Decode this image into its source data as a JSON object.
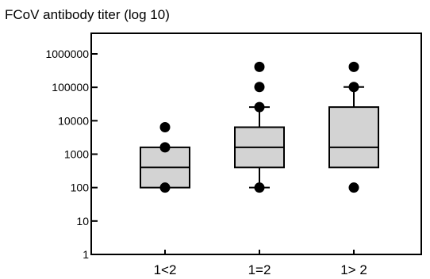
{
  "chart_data": {
    "type": "boxplot",
    "title": "",
    "ylabel": "FCoV antibody titer (log 10)",
    "xlabel": "",
    "yscale": "log",
    "ylim": [
      1,
      1000000
    ],
    "ytick_labels": [
      "1",
      "10",
      "100",
      "1000",
      "10000",
      "100000",
      "1000000"
    ],
    "ytick_values": [
      1,
      10,
      100,
      1000,
      10000,
      100000,
      1000000
    ],
    "categories": [
      "1<2",
      "1=2",
      "1> 2"
    ],
    "box_color": "#d3d3d3",
    "boxes": [
      {
        "category": "1<2",
        "whisker_low": 100,
        "q1": 100,
        "median": 400,
        "q3": 1600,
        "whisker_high": 1600,
        "outliers": [
          6400,
          1600,
          100
        ]
      },
      {
        "category": "1=2",
        "whisker_low": 100,
        "q1": 400,
        "median": 1600,
        "q3": 6400,
        "whisker_high": 25600,
        "outliers": [
          409600,
          102400,
          25600,
          100
        ]
      },
      {
        "category": "1> 2",
        "whisker_low": 400,
        "q1": 400,
        "median": 1600,
        "q3": 25600,
        "whisker_high": 102400,
        "outliers": [
          409600,
          102400,
          100
        ]
      }
    ]
  }
}
